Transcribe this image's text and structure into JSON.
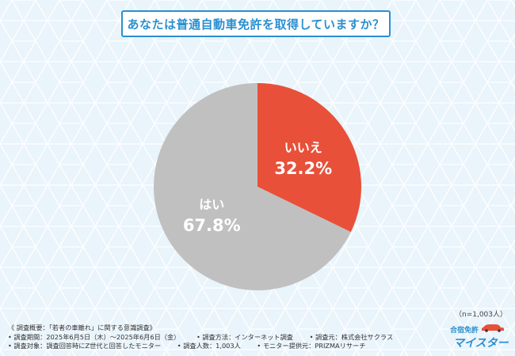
{
  "title": "あなたは普通自動車免許を取得していますか？",
  "colors": {
    "background": "#e9f4fb",
    "accent": "#2a8fd0",
    "no": "#e8503a",
    "yes": "#c0c0c0"
  },
  "chart_data": {
    "type": "pie",
    "title": "あなたは普通自動車免許を取得していますか？",
    "slices": [
      {
        "label": "いいえ",
        "value": 32.2,
        "display": "32.2%",
        "color": "#e8503a"
      },
      {
        "label": "はい",
        "value": 67.8,
        "display": "67.8%",
        "color": "#c0c0c0"
      }
    ],
    "start_angle_deg": 0,
    "direction": "clockwise"
  },
  "sample_note": "（n=1,003人）",
  "footer": {
    "row1": [
      "《 調査概要：「若者の車離れ」に関する意識調査》"
    ],
    "row2": [
      "• 調査期間：2025年6月5日（木）～2025年6月6日（金）",
      "• 調査方法：インターネット調査",
      "• 調査元：株式会社サクラス"
    ],
    "row3": [
      "• 調査対象：調査回答時にZ世代と回答したモニター",
      "• 調査人数：1,003人",
      "• モニター提供元：PRIZMAリサーチ"
    ]
  },
  "logo": {
    "line1": "合宿免許",
    "line2": "マイスター"
  }
}
